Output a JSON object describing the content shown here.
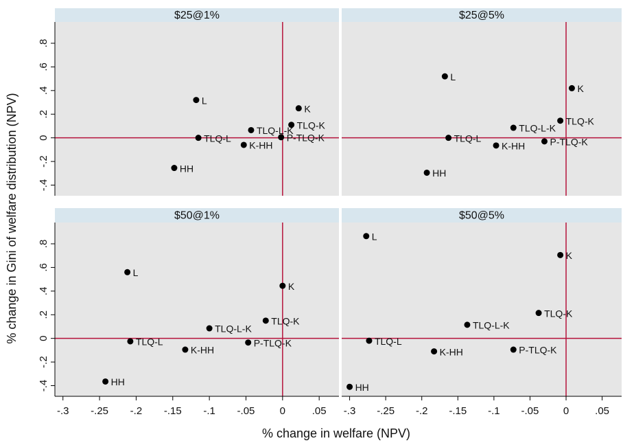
{
  "chart_data": [
    {
      "type": "scatter",
      "title": "$25@1%",
      "labels": [
        "L",
        "K",
        "TLQ-L-K",
        "TLQ-K",
        "TLQ-L",
        "K-HH",
        "P-TLQ-K",
        "HH"
      ],
      "x": [
        -0.118,
        0.022,
        -0.043,
        0.012,
        -0.115,
        -0.053,
        -0.002,
        -0.148
      ],
      "y": [
        0.32,
        0.25,
        0.065,
        0.11,
        0,
        -0.06,
        0.005,
        -0.255
      ],
      "color": "#000000"
    },
    {
      "type": "scatter",
      "title": "$25@5%",
      "labels": [
        "L",
        "K",
        "TLQ-K",
        "TLQ-L-K",
        "TLQ-L",
        "K-HH",
        "P-TLQ-K",
        "HH"
      ],
      "x": [
        -0.168,
        0.008,
        -0.008,
        -0.073,
        -0.163,
        -0.097,
        -0.03,
        -0.193
      ],
      "y": [
        0.52,
        0.42,
        0.145,
        0.085,
        0,
        -0.065,
        -0.03,
        -0.295
      ],
      "color": "#000000"
    },
    {
      "type": "scatter",
      "title": "$50@1%",
      "labels": [
        "L",
        "K",
        "TLQ-K",
        "TLQ-L-K",
        "TLQ-L",
        "P-TLQ-K",
        "K-HH",
        "HH"
      ],
      "x": [
        -0.212,
        0.0,
        -0.023,
        -0.1,
        -0.208,
        -0.047,
        -0.133,
        -0.242
      ],
      "y": [
        0.56,
        0.445,
        0.15,
        0.085,
        -0.025,
        -0.035,
        -0.095,
        -0.365
      ],
      "color": "#000000"
    },
    {
      "type": "scatter",
      "title": "$50@5%",
      "labels": [
        "L",
        "K",
        "TLQ-K",
        "TLQ-L-K",
        "TLQ-L",
        "K-HH",
        "P-TLQ-K",
        "HH"
      ],
      "x": [
        -0.277,
        -0.008,
        -0.038,
        -0.137,
        -0.273,
        -0.183,
        -0.073,
        -0.3
      ],
      "y": [
        0.865,
        0.705,
        0.215,
        0.115,
        -0.02,
        -0.11,
        -0.095,
        -0.41
      ],
      "color": "#000000"
    }
  ],
  "shared_axes": {
    "x_label": "% change in welfare (NPV)",
    "y_label": "% change in Gini of welfare distribution (NPV)",
    "xlim": [
      -0.311,
      0.077
    ],
    "ylim": [
      -0.49,
      0.98
    ],
    "xticks": [
      {
        "value": -0.3,
        "label": "-.3"
      },
      {
        "value": -0.25,
        "label": "-.25"
      },
      {
        "value": -0.2,
        "label": "-.2"
      },
      {
        "value": -0.15,
        "label": "-.15"
      },
      {
        "value": -0.1,
        "label": "-.1"
      },
      {
        "value": -0.05,
        "label": "-.05"
      },
      0,
      {
        "value": 0.05,
        "label": ".05"
      }
    ],
    "yticks": [
      {
        "value": -0.4,
        "label": "-.4"
      },
      {
        "value": -0.2,
        "label": "-.2"
      },
      0,
      {
        "value": 0.2,
        "label": ".2"
      },
      {
        "value": 0.4,
        "label": ".4"
      },
      {
        "value": 0.6,
        "label": ".6"
      },
      {
        "value": 0.8,
        "label": ".8"
      }
    ],
    "refline_color": "#b5123a"
  }
}
